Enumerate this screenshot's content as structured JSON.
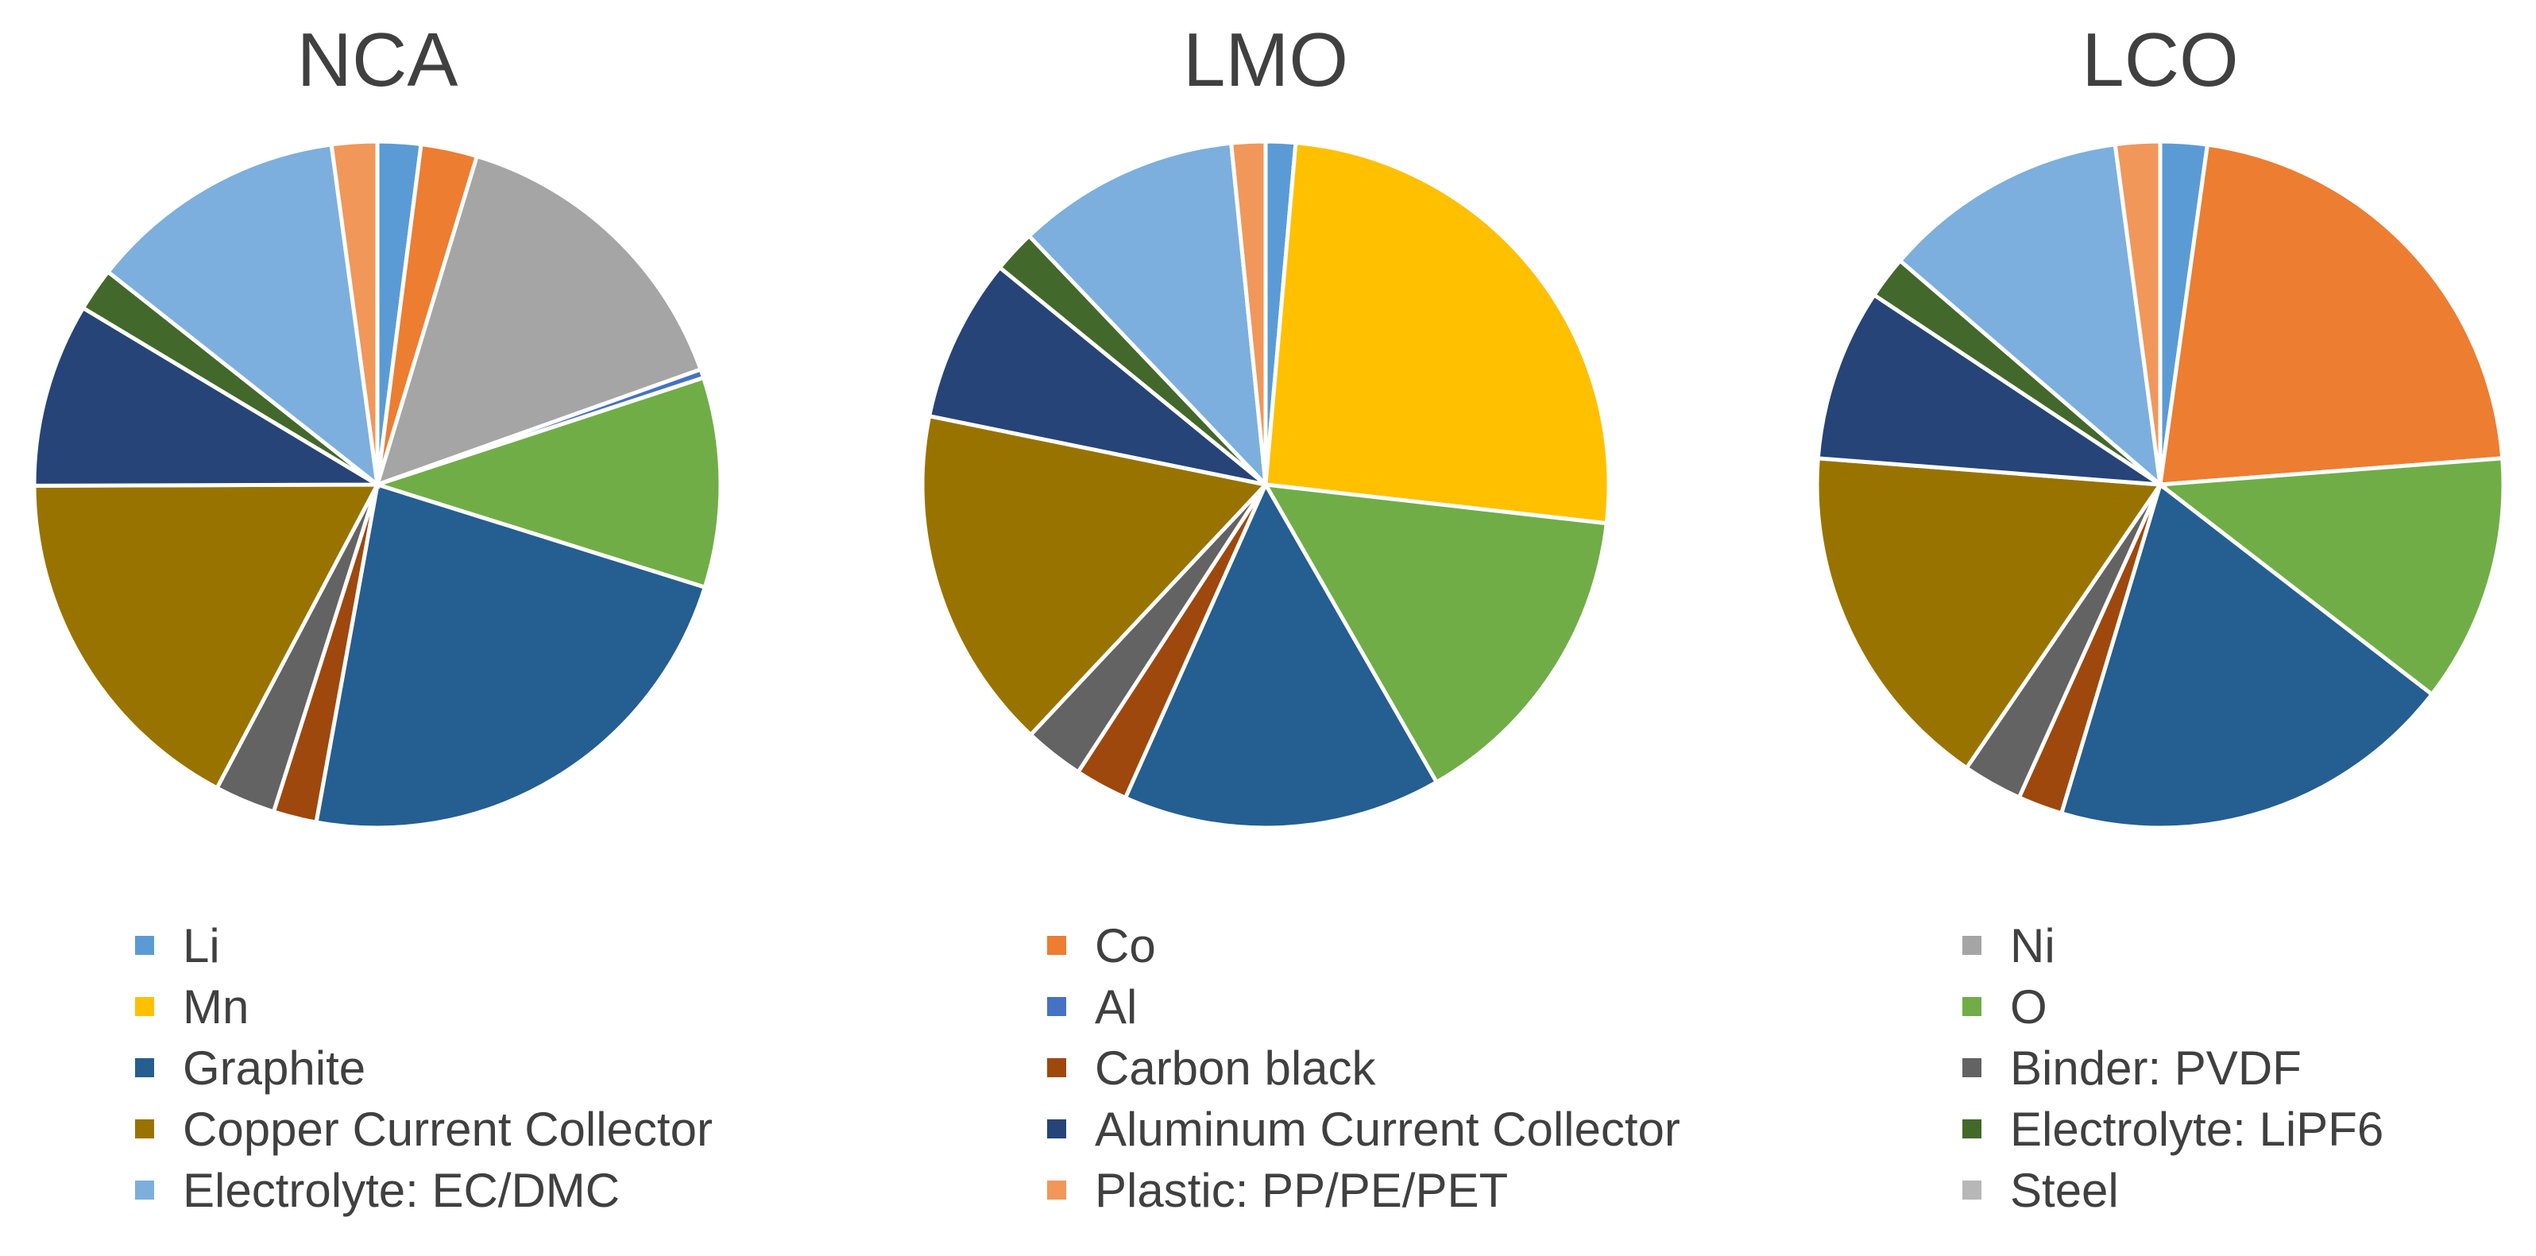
{
  "chart_data": [
    {
      "type": "pie",
      "title": "NCA",
      "labels": [
        "Li",
        "Co",
        "Ni",
        "Mn",
        "Al",
        "O",
        "Graphite",
        "Carbon black",
        "Binder: PVDF",
        "Copper Current Collector",
        "Aluminum Current Collector",
        "Electrolyte: LiPF6",
        "Electrolyte: EC/DMC",
        "Plastic: PP/PE/PET",
        "Steel"
      ],
      "values": [
        2.0,
        2.6,
        14.6,
        0.0,
        0.4,
        9.7,
        22.6,
        2.0,
        2.8,
        16.9,
        8.5,
        2.0,
        12.0,
        2.1,
        0.0
      ],
      "legend_position": "bottom"
    },
    {
      "type": "pie",
      "title": "LMO",
      "labels": [
        "Li",
        "Co",
        "Ni",
        "Mn",
        "Al",
        "O",
        "Graphite",
        "Carbon black",
        "Binder: PVDF",
        "Copper Current Collector",
        "Aluminum Current Collector",
        "Electrolyte: LiPF6",
        "Electrolyte: EC/DMC",
        "Plastic: PP/PE/PET",
        "Steel"
      ],
      "values": [
        1.4,
        0.0,
        0.0,
        25.4,
        0.0,
        14.9,
        15.0,
        2.5,
        2.8,
        16.2,
        7.7,
        2.0,
        10.5,
        1.6,
        0.0
      ],
      "legend_position": "bottom"
    },
    {
      "type": "pie",
      "title": "LCO",
      "labels": [
        "Li",
        "Co",
        "Ni",
        "Mn",
        "Al",
        "O",
        "Graphite",
        "Carbon black",
        "Binder: PVDF",
        "Copper Current Collector",
        "Aluminum Current Collector",
        "Electrolyte: LiPF6",
        "Electrolyte: EC/DMC",
        "Plastic: PP/PE/PET",
        "Steel"
      ],
      "values": [
        2.2,
        21.6,
        0.0,
        0.0,
        0.0,
        11.7,
        19.2,
        2.1,
        2.8,
        16.7,
        8.1,
        2.0,
        11.6,
        2.1,
        0.0
      ],
      "legend_position": "bottom"
    }
  ],
  "legend": {
    "items": [
      {
        "label": "Li",
        "color": "#5B9BD5"
      },
      {
        "label": "Co",
        "color": "#ED7D31"
      },
      {
        "label": "Ni",
        "color": "#A5A5A5"
      },
      {
        "label": "Mn",
        "color": "#FFC000"
      },
      {
        "label": "Al",
        "color": "#4472C4"
      },
      {
        "label": "O",
        "color": "#70AD47"
      },
      {
        "label": "Graphite",
        "color": "#255E91"
      },
      {
        "label": "Carbon black",
        "color": "#9E480E"
      },
      {
        "label": "Binder: PVDF",
        "color": "#636363"
      },
      {
        "label": "Copper Current Collector",
        "color": "#997300"
      },
      {
        "label": "Aluminum Current Collector",
        "color": "#264478"
      },
      {
        "label": "Electrolyte: LiPF6",
        "color": "#43682B"
      },
      {
        "label": "Electrolyte: EC/DMC",
        "color": "#7CAFDD"
      },
      {
        "label": "Plastic: PP/PE/PET",
        "color": "#F1975A"
      },
      {
        "label": "Steel",
        "color": "#B7B7B7"
      }
    ]
  }
}
